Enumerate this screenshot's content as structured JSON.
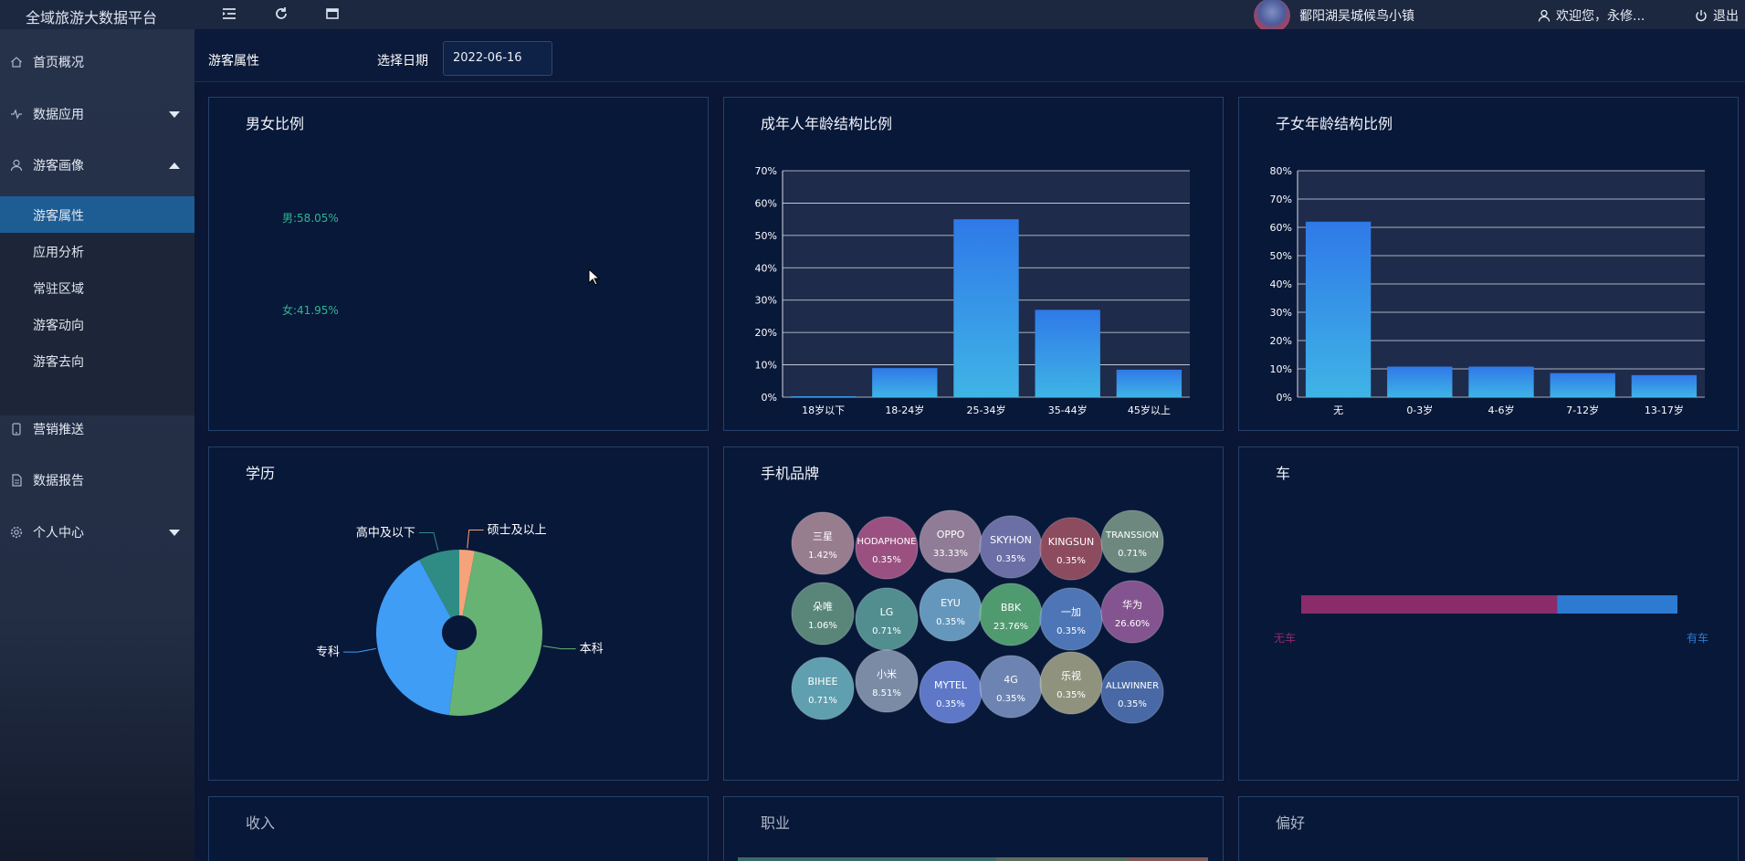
{
  "app": {
    "title": "全域旅游大数据平台",
    "place": "鄱阳湖吴城候鸟小镇",
    "welcome": "欢迎您，永修...",
    "logout": "退出"
  },
  "toolbar": {
    "icons": [
      "menu-fold-icon",
      "refresh-icon",
      "fullscreen-icon"
    ]
  },
  "sidebar": {
    "items": [
      {
        "label": "首页概况",
        "icon": "home-icon"
      },
      {
        "label": "数据应用",
        "icon": "pulse-icon",
        "arrow": "down"
      },
      {
        "label": "游客画像",
        "icon": "user-icon",
        "arrow": "up"
      },
      {
        "label": "营销推送",
        "icon": "phone-icon"
      },
      {
        "label": "数据报告",
        "icon": "report-icon"
      },
      {
        "label": "个人中心",
        "icon": "gear-icon",
        "arrow": "down"
      }
    ],
    "subitems": [
      {
        "label": "游客属性",
        "active": true
      },
      {
        "label": "应用分析"
      },
      {
        "label": "常驻区域"
      },
      {
        "label": "游客动向"
      },
      {
        "label": "游客去向"
      }
    ]
  },
  "header": {
    "title": "游客属性",
    "date_label": "选择日期",
    "date_value": "2022-06-16"
  },
  "panels": {
    "gender": {
      "title": "男女比例",
      "male": "男:58.05%",
      "female": "女:41.95%"
    },
    "adult_age": {
      "title": "成年人年龄结构比例"
    },
    "child_age": {
      "title": "子女年龄结构比例"
    },
    "education": {
      "title": "学历"
    },
    "phone": {
      "title": "手机品牌"
    },
    "car": {
      "title": "车",
      "no_car": "无车",
      "has_car": "有车"
    },
    "income": {
      "title": "收入"
    },
    "job": {
      "title": "职业"
    },
    "preference": {
      "title": "偏好"
    }
  },
  "chart_data": [
    {
      "type": "bar",
      "title": "成年人年龄结构比例",
      "categories": [
        "18岁以下",
        "18-24岁",
        "25-34岁",
        "35-44岁",
        "45岁以上"
      ],
      "values": [
        0.3,
        9,
        55,
        27,
        8.5
      ],
      "yticks": [
        "0%",
        "10%",
        "20%",
        "30%",
        "40%",
        "50%",
        "60%",
        "70%"
      ],
      "ylim": [
        0,
        70
      ],
      "grid": true
    },
    {
      "type": "bar",
      "title": "子女年龄结构比例",
      "categories": [
        "无",
        "0-3岁",
        "4-6岁",
        "7-12岁",
        "13-17岁"
      ],
      "values": [
        62,
        10.8,
        10.8,
        8.5,
        7.8
      ],
      "yticks": [
        "0%",
        "10%",
        "20%",
        "30%",
        "40%",
        "50%",
        "60%",
        "70%",
        "80%"
      ],
      "ylim": [
        0,
        80
      ],
      "grid": true
    },
    {
      "type": "pie",
      "title": "学历",
      "slices": [
        {
          "label": "硕士及以上",
          "value": 3,
          "color": "#f4a37a"
        },
        {
          "label": "本科",
          "value": 49,
          "color": "#67b373"
        },
        {
          "label": "专科",
          "value": 40,
          "color": "#3f9df5"
        },
        {
          "label": "高中及以下",
          "value": 8,
          "color": "#2f8c84"
        }
      ]
    },
    {
      "type": "scatter",
      "title": "手机品牌",
      "bubbles": [
        {
          "name": "三星",
          "value": "1.42%",
          "color": "#b08f9e"
        },
        {
          "name": "HODAPHONE",
          "value": "0.35%",
          "color": "#b45c8e"
        },
        {
          "name": "OPPO",
          "value": "33.33%",
          "color": "#a88ea7"
        },
        {
          "name": "SKYHON",
          "value": "0.35%",
          "color": "#7d7fb8"
        },
        {
          "name": "KINGSUN",
          "value": "0.35%",
          "color": "#a35565"
        },
        {
          "name": "TRANSSION",
          "value": "0.71%",
          "color": "#7f9c8c"
        },
        {
          "name": "朵唯",
          "value": "1.06%",
          "color": "#699a86"
        },
        {
          "name": "LG",
          "value": "0.71%",
          "color": "#5fa3a0"
        },
        {
          "name": "EYU",
          "value": "0.35%",
          "color": "#75aed4"
        },
        {
          "name": "BBK",
          "value": "23.76%",
          "color": "#5db27a"
        },
        {
          "name": "一加",
          "value": "0.35%",
          "color": "#5a87cc"
        },
        {
          "name": "华为",
          "value": "26.60%",
          "color": "#9a5fa0"
        },
        {
          "name": "BIHEE",
          "value": "0.71%",
          "color": "#6fb7c4"
        },
        {
          "name": "小米",
          "value": "8.51%",
          "color": "#8fa0b8"
        },
        {
          "name": "MYTEL",
          "value": "0.35%",
          "color": "#6d8ae0"
        },
        {
          "name": "4G",
          "value": "0.35%",
          "color": "#7f98c8"
        },
        {
          "name": "乐视",
          "value": "0.35%",
          "color": "#a7a98a"
        },
        {
          "name": "ALLWINNER",
          "value": "0.35%",
          "color": "#5378b8"
        }
      ]
    },
    {
      "type": "bar",
      "title": "车",
      "segments": [
        {
          "label": "无车",
          "value": 68,
          "color": "#8a2b6a"
        },
        {
          "label": "有车",
          "value": 32,
          "color": "#2d7ad2"
        }
      ]
    }
  ]
}
